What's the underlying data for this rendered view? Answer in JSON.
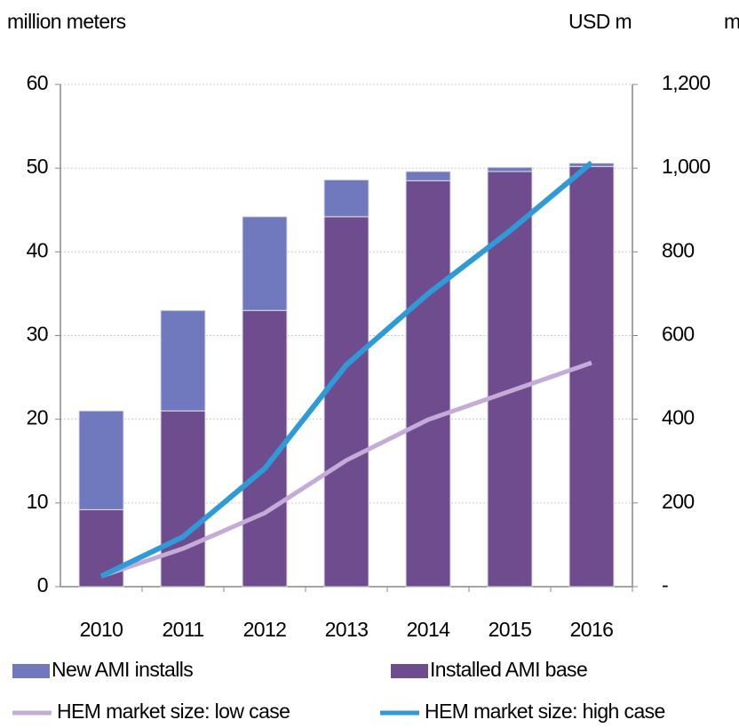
{
  "chart_data": {
    "type": "bar",
    "axis_labels": {
      "y": "million meters",
      "y2": "USD m",
      "y2_extra": "m"
    },
    "categories": [
      "2010",
      "2011",
      "2012",
      "2013",
      "2014",
      "2015",
      "2016"
    ],
    "series": [
      {
        "name": "Installed AMI base",
        "type": "bar",
        "color": "#6e4c8e",
        "values": [
          9.2,
          21,
          33,
          44.2,
          48.5,
          49.6,
          50.2
        ]
      },
      {
        "name": "New AMI installs",
        "type": "bar",
        "color": "#7079bd",
        "values": [
          11.8,
          12,
          11.2,
          4.4,
          1.1,
          0.5,
          0.4
        ]
      },
      {
        "name": "HEM market size: low case",
        "type": "line",
        "axis": "y2",
        "color": "#c4abd8",
        "values": [
          25,
          91,
          176,
          302,
          399,
          467,
          535
        ]
      },
      {
        "name": "HEM market size: high case",
        "type": "line",
        "axis": "y2",
        "color": "#2f9ad8",
        "values": [
          25,
          119,
          282,
          530,
          700,
          850,
          1013
        ]
      }
    ],
    "ylim": [
      0,
      60
    ],
    "yticks": [
      0,
      10,
      20,
      30,
      40,
      50,
      60
    ],
    "y2lim": [
      0,
      1200
    ],
    "y2ticks": [
      {
        "value": 0,
        "label": "-"
      },
      200,
      400,
      600,
      800,
      {
        "value": 1000,
        "label": "1,000"
      },
      {
        "value": 1200,
        "label": "1,200"
      }
    ],
    "grid": true
  }
}
